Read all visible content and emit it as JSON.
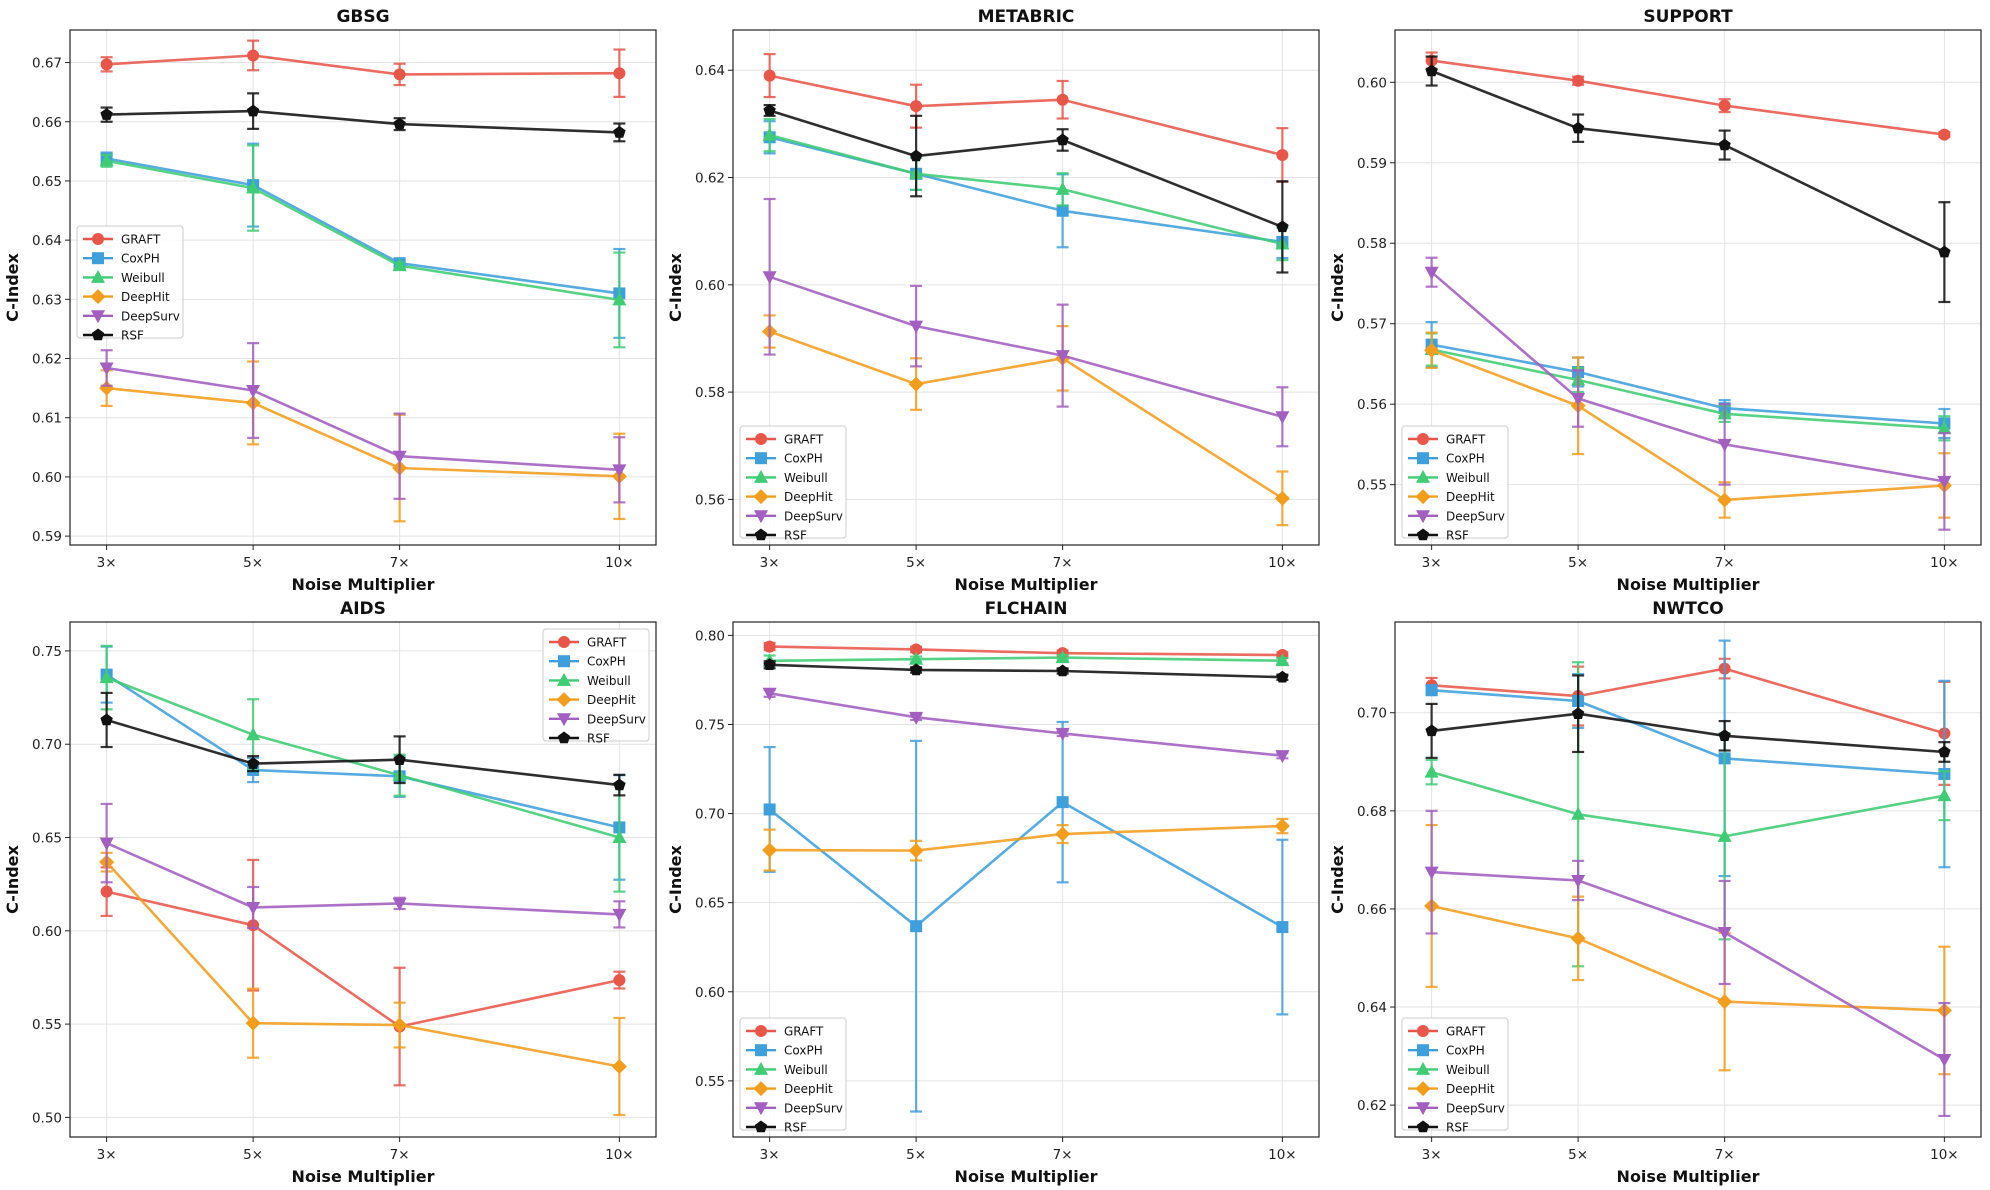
{
  "series_style": [
    {
      "name": "GRAFT",
      "color": "#e8564a",
      "marker": "circle"
    },
    {
      "name": "CoxPH",
      "color": "#3f9fdc",
      "marker": "square"
    },
    {
      "name": "Weibull",
      "color": "#3fcc74",
      "marker": "triangle-up"
    },
    {
      "name": "DeepHit",
      "color": "#f29d1c",
      "marker": "diamond"
    },
    {
      "name": "DeepSurv",
      "color": "#a25fc0",
      "marker": "triangle-down"
    },
    {
      "name": "RSF",
      "color": "#111111",
      "marker": "pentagon"
    }
  ],
  "chart_data": [
    {
      "type": "line",
      "title": "GBSG",
      "xlabel": "Noise Multiplier",
      "ylabel": "C-Index",
      "categories": [
        "3×",
        "5×",
        "7×",
        "10×"
      ],
      "x": [
        3,
        5,
        7,
        10
      ],
      "xlim": [
        2.5,
        10.5
      ],
      "ylim": [
        0.5885,
        0.6755
      ],
      "yticks": [
        0.59,
        0.6,
        0.61,
        0.62,
        0.63,
        0.64,
        0.65,
        0.66,
        0.67
      ],
      "legend": "center-left",
      "grid": true,
      "series": [
        {
          "name": "GRAFT",
          "values": [
            0.6697,
            0.6712,
            0.668,
            0.6682
          ],
          "errors": [
            0.0012,
            0.0025,
            0.0018,
            0.004
          ]
        },
        {
          "name": "CoxPH",
          "values": [
            0.6538,
            0.6493,
            0.6361,
            0.631
          ],
          "errors": [
            0.001,
            0.007,
            0.0005,
            0.0075
          ]
        },
        {
          "name": "Weibull",
          "values": [
            0.6534,
            0.6488,
            0.6357,
            0.6299
          ],
          "errors": [
            0.001,
            0.0072,
            0.0005,
            0.008
          ]
        },
        {
          "name": "DeepHit",
          "values": [
            0.615,
            0.6125,
            0.6015,
            0.6001
          ],
          "errors": [
            0.003,
            0.007,
            0.009,
            0.0072
          ]
        },
        {
          "name": "DeepSurv",
          "values": [
            0.6184,
            0.6146,
            0.6035,
            0.6012
          ],
          "errors": [
            0.003,
            0.008,
            0.0072,
            0.0055
          ]
        },
        {
          "name": "RSF",
          "values": [
            0.6612,
            0.6618,
            0.6596,
            0.6582
          ],
          "errors": [
            0.0012,
            0.003,
            0.001,
            0.0015
          ]
        }
      ]
    },
    {
      "type": "line",
      "title": "METABRIC",
      "xlabel": "Noise Multiplier",
      "ylabel": "C-Index",
      "categories": [
        "3×",
        "5×",
        "7×",
        "10×"
      ],
      "x": [
        3,
        5,
        7,
        10
      ],
      "xlim": [
        2.5,
        10.5
      ],
      "ylim": [
        0.5515,
        0.6475
      ],
      "yticks": [
        0.56,
        0.58,
        0.6,
        0.62,
        0.64
      ],
      "legend": "lower-left",
      "grid": true,
      "series": [
        {
          "name": "GRAFT",
          "values": [
            0.639,
            0.6333,
            0.6345,
            0.6242
          ],
          "errors": [
            0.004,
            0.004,
            0.0035,
            0.005
          ]
        },
        {
          "name": "CoxPH",
          "values": [
            0.6275,
            0.6207,
            0.6138,
            0.608
          ],
          "errors": [
            0.003,
            0.003,
            0.0068,
            0.003
          ]
        },
        {
          "name": "Weibull",
          "values": [
            0.6279,
            0.6207,
            0.6178,
            0.6076
          ],
          "errors": [
            0.003,
            0.003,
            0.003,
            0.003
          ]
        },
        {
          "name": "DeepHit",
          "values": [
            0.5913,
            0.5815,
            0.5863,
            0.5602
          ],
          "errors": [
            0.003,
            0.0048,
            0.006,
            0.005
          ]
        },
        {
          "name": "DeepSurv",
          "values": [
            0.6015,
            0.5923,
            0.5868,
            0.5754
          ],
          "errors": [
            0.0145,
            0.0075,
            0.0095,
            0.0055
          ]
        },
        {
          "name": "RSF",
          "values": [
            0.6325,
            0.624,
            0.627,
            0.6108
          ],
          "errors": [
            0.001,
            0.0075,
            0.002,
            0.0085
          ]
        }
      ]
    },
    {
      "type": "line",
      "title": "SUPPORT",
      "xlabel": "Noise Multiplier",
      "ylabel": "C-Index",
      "categories": [
        "3×",
        "5×",
        "7×",
        "10×"
      ],
      "x": [
        3,
        5,
        7,
        10
      ],
      "xlim": [
        2.5,
        10.5
      ],
      "ylim": [
        0.5425,
        0.6065
      ],
      "yticks": [
        0.55,
        0.56,
        0.57,
        0.58,
        0.59,
        0.6
      ],
      "legend": "lower-left",
      "grid": true,
      "series": [
        {
          "name": "GRAFT",
          "values": [
            0.6027,
            0.6002,
            0.5971,
            0.5935
          ],
          "errors": [
            0.001,
            0.0005,
            0.0008,
            0.0003
          ]
        },
        {
          "name": "CoxPH",
          "values": [
            0.5674,
            0.564,
            0.5595,
            0.5576
          ],
          "errors": [
            0.0028,
            0.0018,
            0.001,
            0.0018
          ]
        },
        {
          "name": "Weibull",
          "values": [
            0.5668,
            0.563,
            0.5588,
            0.557
          ],
          "errors": [
            0.002,
            0.0015,
            0.001,
            0.0015
          ]
        },
        {
          "name": "DeepHit",
          "values": [
            0.5667,
            0.5598,
            0.5481,
            0.5499
          ],
          "errors": [
            0.0022,
            0.006,
            0.0022,
            0.004
          ]
        },
        {
          "name": "DeepSurv",
          "values": [
            0.5764,
            0.5607,
            0.555,
            0.5504
          ],
          "errors": [
            0.0018,
            0.0035,
            0.005,
            0.006
          ]
        },
        {
          "name": "RSF",
          "values": [
            0.6014,
            0.5943,
            0.5922,
            0.5789
          ],
          "errors": [
            0.0018,
            0.0017,
            0.0018,
            0.0062
          ]
        }
      ]
    },
    {
      "type": "line",
      "title": "AIDS",
      "xlabel": "Noise Multiplier",
      "ylabel": "C-Index",
      "categories": [
        "3×",
        "5×",
        "7×",
        "10×"
      ],
      "x": [
        3,
        5,
        7,
        10
      ],
      "xlim": [
        2.5,
        10.5
      ],
      "ylim": [
        0.4895,
        0.7655
      ],
      "yticks": [
        0.5,
        0.55,
        0.6,
        0.65,
        0.7,
        0.75
      ],
      "legend": "upper-right",
      "grid": true,
      "series": [
        {
          "name": "GRAFT",
          "values": [
            0.621,
            0.603,
            0.5487,
            0.5736
          ],
          "errors": [
            0.013,
            0.035,
            0.0315,
            0.0045
          ]
        },
        {
          "name": "CoxPH",
          "values": [
            0.7373,
            0.6862,
            0.6828,
            0.6554
          ],
          "errors": [
            0.015,
            0.0065,
            0.011,
            0.028
          ]
        },
        {
          "name": "Weibull",
          "values": [
            0.7357,
            0.7051,
            0.6834,
            0.65
          ],
          "errors": [
            0.017,
            0.019,
            0.011,
            0.029
          ]
        },
        {
          "name": "DeepHit",
          "values": [
            0.6368,
            0.5505,
            0.5495,
            0.5273
          ],
          "errors": [
            0.005,
            0.0185,
            0.012,
            0.026
          ]
        },
        {
          "name": "DeepSurv",
          "values": [
            0.647,
            0.6125,
            0.6147,
            0.6088
          ],
          "errors": [
            0.021,
            0.011,
            0.003,
            0.007
          ]
        },
        {
          "name": "RSF",
          "values": [
            0.713,
            0.6896,
            0.6917,
            0.6781
          ],
          "errors": [
            0.0145,
            0.004,
            0.0125,
            0.0055
          ]
        }
      ]
    },
    {
      "type": "line",
      "title": "FLCHAIN",
      "xlabel": "Noise Multiplier",
      "ylabel": "C-Index",
      "categories": [
        "3×",
        "5×",
        "7×",
        "10×"
      ],
      "x": [
        3,
        5,
        7,
        10
      ],
      "xlim": [
        2.5,
        10.5
      ],
      "ylim": [
        0.5185,
        0.8075
      ],
      "yticks": [
        0.55,
        0.6,
        0.65,
        0.7,
        0.75,
        0.8
      ],
      "legend": "lower-left",
      "grid": true,
      "series": [
        {
          "name": "GRAFT",
          "values": [
            0.7937,
            0.7921,
            0.79,
            0.789
          ],
          "errors": [
            0.002,
            0.0015,
            0.0015,
            0.0015
          ]
        },
        {
          "name": "CoxPH",
          "values": [
            0.7023,
            0.6368,
            0.7064,
            0.6363
          ],
          "errors": [
            0.035,
            0.104,
            0.045,
            0.049
          ]
        },
        {
          "name": "Weibull",
          "values": [
            0.7857,
            0.7866,
            0.7875,
            0.7858
          ],
          "errors": [
            0.003,
            0.0015,
            0.0015,
            0.0015
          ]
        },
        {
          "name": "DeepHit",
          "values": [
            0.6795,
            0.6792,
            0.6885,
            0.693
          ],
          "errors": [
            0.0115,
            0.0055,
            0.005,
            0.004
          ]
        },
        {
          "name": "DeepSurv",
          "values": [
            0.7675,
            0.754,
            0.745,
            0.7325
          ],
          "errors": [
            0.002,
            0.0015,
            0.0015,
            0.0015
          ]
        },
        {
          "name": "RSF",
          "values": [
            0.7835,
            0.7806,
            0.78,
            0.7765
          ],
          "errors": [
            0.002,
            0.0015,
            0.0015,
            0.0015
          ]
        }
      ]
    },
    {
      "type": "line",
      "title": "NWTCO",
      "xlabel": "Noise Multiplier",
      "ylabel": "C-Index",
      "categories": [
        "3×",
        "5×",
        "7×",
        "10×"
      ],
      "x": [
        3,
        5,
        7,
        10
      ],
      "xlim": [
        2.5,
        10.5
      ],
      "ylim": [
        0.6135,
        0.7185
      ],
      "yticks": [
        0.62,
        0.64,
        0.66,
        0.68,
        0.7
      ],
      "legend": "lower-left",
      "grid": true,
      "series": [
        {
          "name": "GRAFT",
          "values": [
            0.7056,
            0.7034,
            0.709,
            0.6958
          ],
          "errors": [
            0.0015,
            0.006,
            0.002,
            0.0105
          ]
        },
        {
          "name": "CoxPH",
          "values": [
            0.7046,
            0.7024,
            0.6907,
            0.6875
          ],
          "errors": [
            0.001,
            0.0055,
            0.024,
            0.019
          ]
        },
        {
          "name": "Weibull",
          "values": [
            0.6879,
            0.6793,
            0.6748,
            0.6831
          ],
          "errors": [
            0.0025,
            0.031,
            0.021,
            0.005
          ]
        },
        {
          "name": "DeepHit",
          "values": [
            0.6606,
            0.654,
            0.6411,
            0.6393
          ],
          "errors": [
            0.0165,
            0.0085,
            0.014,
            0.013
          ]
        },
        {
          "name": "DeepSurv",
          "values": [
            0.6675,
            0.6658,
            0.6552,
            0.6293
          ],
          "errors": [
            0.0125,
            0.004,
            0.0105,
            0.0115
          ]
        },
        {
          "name": "RSF",
          "values": [
            0.6963,
            0.6998,
            0.6953,
            0.692
          ],
          "errors": [
            0.0055,
            0.0078,
            0.003,
            0.002
          ]
        }
      ]
    }
  ]
}
